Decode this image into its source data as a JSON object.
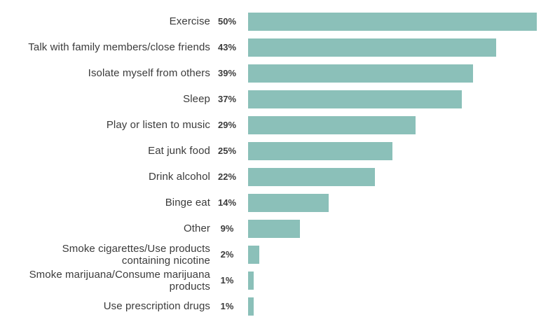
{
  "chart_data": {
    "type": "bar",
    "orientation": "horizontal",
    "title": "",
    "xlabel": "",
    "ylabel": "",
    "grid": false,
    "legend": false,
    "xlim": [
      0,
      50
    ],
    "bar_color": "#8bc0b9",
    "label_color": "#3b3b3b",
    "categories": [
      "Exercise",
      "Talk with family members/close friends",
      "Isolate myself from others",
      "Sleep",
      "Play or listen to music",
      "Eat junk food",
      "Drink alcohol",
      "Binge eat",
      "Other",
      "Smoke cigarettes/Use products containing nicotine",
      "Smoke marijuana/Consume marijuana products",
      "Use prescription drugs"
    ],
    "display_labels": [
      "Exercise",
      "Talk with family members/close friends",
      "Isolate myself from others",
      "Sleep",
      "Play or listen to music",
      "Eat junk food",
      "Drink alcohol",
      "Binge eat",
      "Other",
      "Smoke cigarettes/Use products\ncontaining nicotine",
      "Smoke marijuana/Consume marijuana\nproducts",
      "Use prescription drugs"
    ],
    "values": [
      50,
      43,
      39,
      37,
      29,
      25,
      22,
      14,
      9,
      2,
      1,
      1
    ],
    "value_labels": [
      "50%",
      "43%",
      "39%",
      "37%",
      "29%",
      "25%",
      "22%",
      "14%",
      "9%",
      "2%",
      "1%",
      "1%"
    ]
  }
}
